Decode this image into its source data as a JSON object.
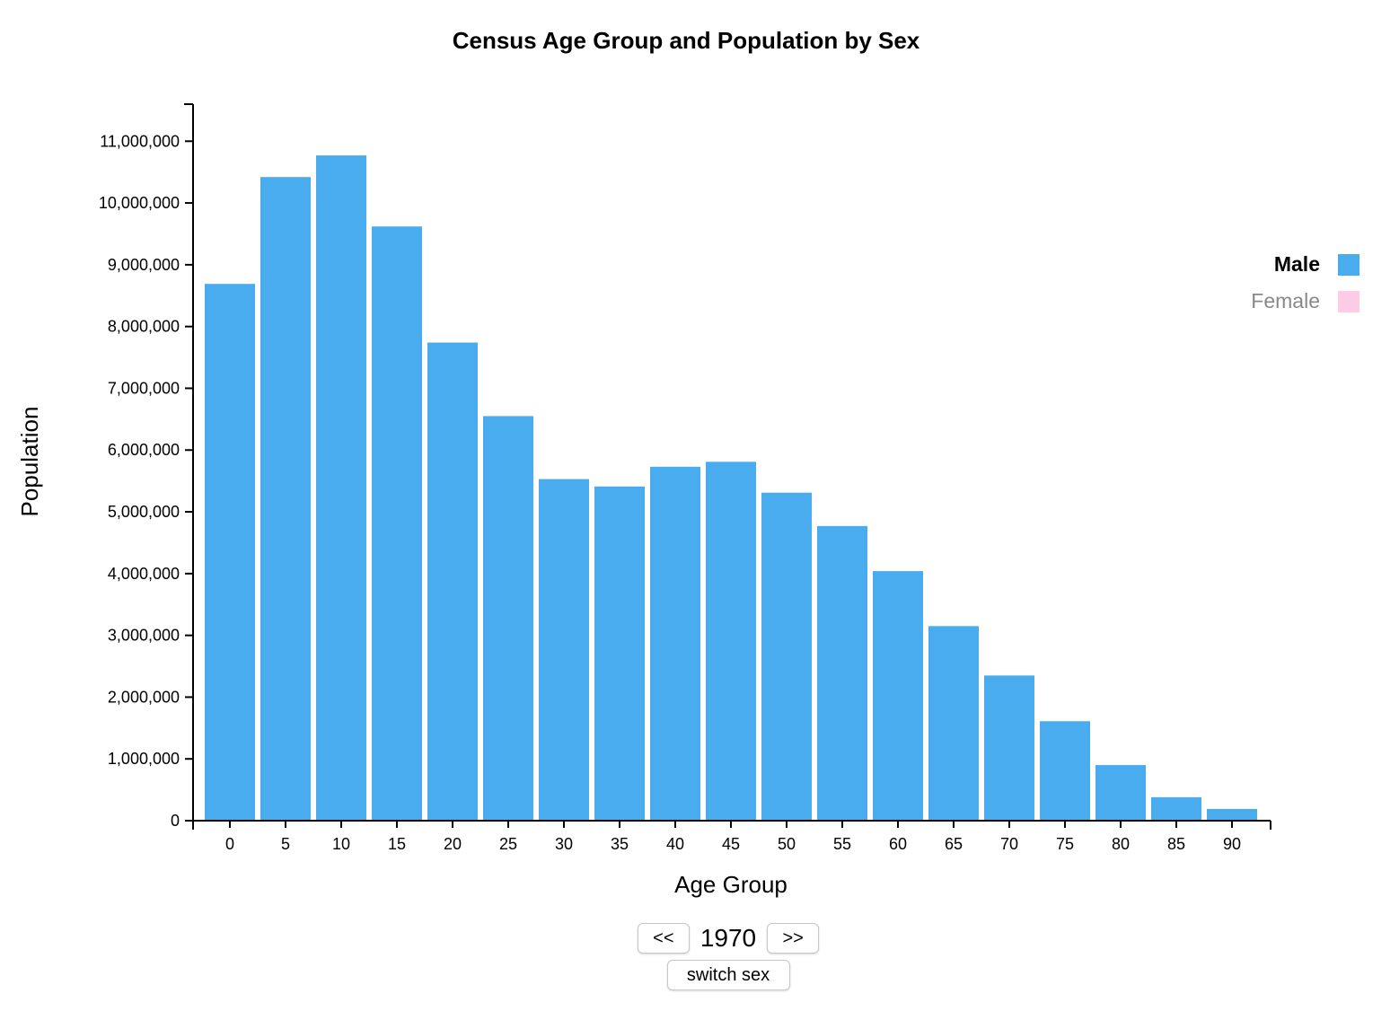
{
  "chart_data": {
    "type": "bar",
    "title": "Census Age Group and Population by Sex",
    "xlabel": "Age Group",
    "ylabel": "Population",
    "categories": [
      "0",
      "5",
      "10",
      "15",
      "20",
      "25",
      "30",
      "35",
      "40",
      "45",
      "50",
      "55",
      "60",
      "65",
      "70",
      "75",
      "80",
      "85",
      "90"
    ],
    "series": [
      {
        "name": "Male",
        "color": "#49acef",
        "values": [
          8690000,
          10420000,
          10770000,
          9620000,
          7740000,
          6550000,
          5530000,
          5410000,
          5730000,
          5810000,
          5310000,
          4770000,
          4040000,
          3150000,
          2350000,
          1610000,
          900000,
          380000,
          190000
        ]
      }
    ],
    "y_ticks": [
      "0",
      "1,000,000",
      "2,000,000",
      "3,000,000",
      "4,000,000",
      "5,000,000",
      "6,000,000",
      "7,000,000",
      "8,000,000",
      "9,000,000",
      "10,000,000",
      "11,000,000"
    ],
    "ylim": [
      0,
      11600000
    ],
    "grid": false,
    "legend": {
      "placement": "right",
      "items": [
        {
          "label": "Male",
          "color": "#49acef",
          "active": true
        },
        {
          "label": "Female",
          "color": "#ffcce6",
          "active": false
        }
      ]
    }
  },
  "controls": {
    "prev_label": "<<",
    "year": "1970",
    "next_label": ">>",
    "switch_label": "switch sex"
  }
}
